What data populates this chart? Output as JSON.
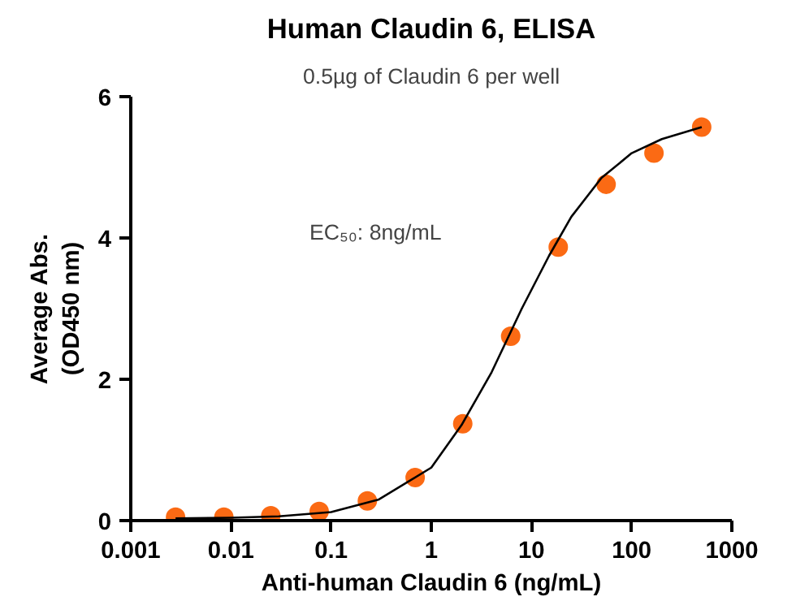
{
  "chart_data": {
    "type": "scatter",
    "title": "Human Claudin 6, ELISA",
    "subtitle": "0.5µg of Claudin 6 per well",
    "xlabel": "Anti-human Claudin 6 (ng/mL)",
    "ylabel": "Average Abs.\n(OD450 nm)",
    "log": "x",
    "grid": false,
    "marker": "circle",
    "xlim": [
      0.001,
      1000
    ],
    "xticks": [
      0.001,
      0.01,
      0.1,
      1,
      10,
      100,
      1000
    ],
    "ylim": [
      0,
      6
    ],
    "yticks": [
      0,
      2,
      4,
      6
    ],
    "annotations": [
      "EC₅₀: 8ng/mL"
    ],
    "series": [
      {
        "color": "#fb6a14",
        "x": [
          0.0028,
          0.0085,
          0.025,
          0.076,
          0.23,
          0.69,
          2.06,
          6.2,
          18.5,
          55.6,
          167,
          500
        ],
        "values": [
          0.05,
          0.05,
          0.07,
          0.13,
          0.28,
          0.61,
          1.37,
          2.61,
          3.87,
          4.76,
          5.2,
          5.57
        ]
      },
      {
        "type": "line",
        "color": "#000000",
        "marker": "none",
        "x": [
          0.0028,
          0.01,
          0.03,
          0.1,
          0.3,
          1,
          2,
          4,
          8,
          15,
          25,
          50,
          100,
          200,
          500
        ],
        "values": [
          0.03,
          0.04,
          0.06,
          0.12,
          0.3,
          0.75,
          1.35,
          2.1,
          3.0,
          3.75,
          4.3,
          4.85,
          5.2,
          5.4,
          5.57
        ]
      }
    ]
  }
}
